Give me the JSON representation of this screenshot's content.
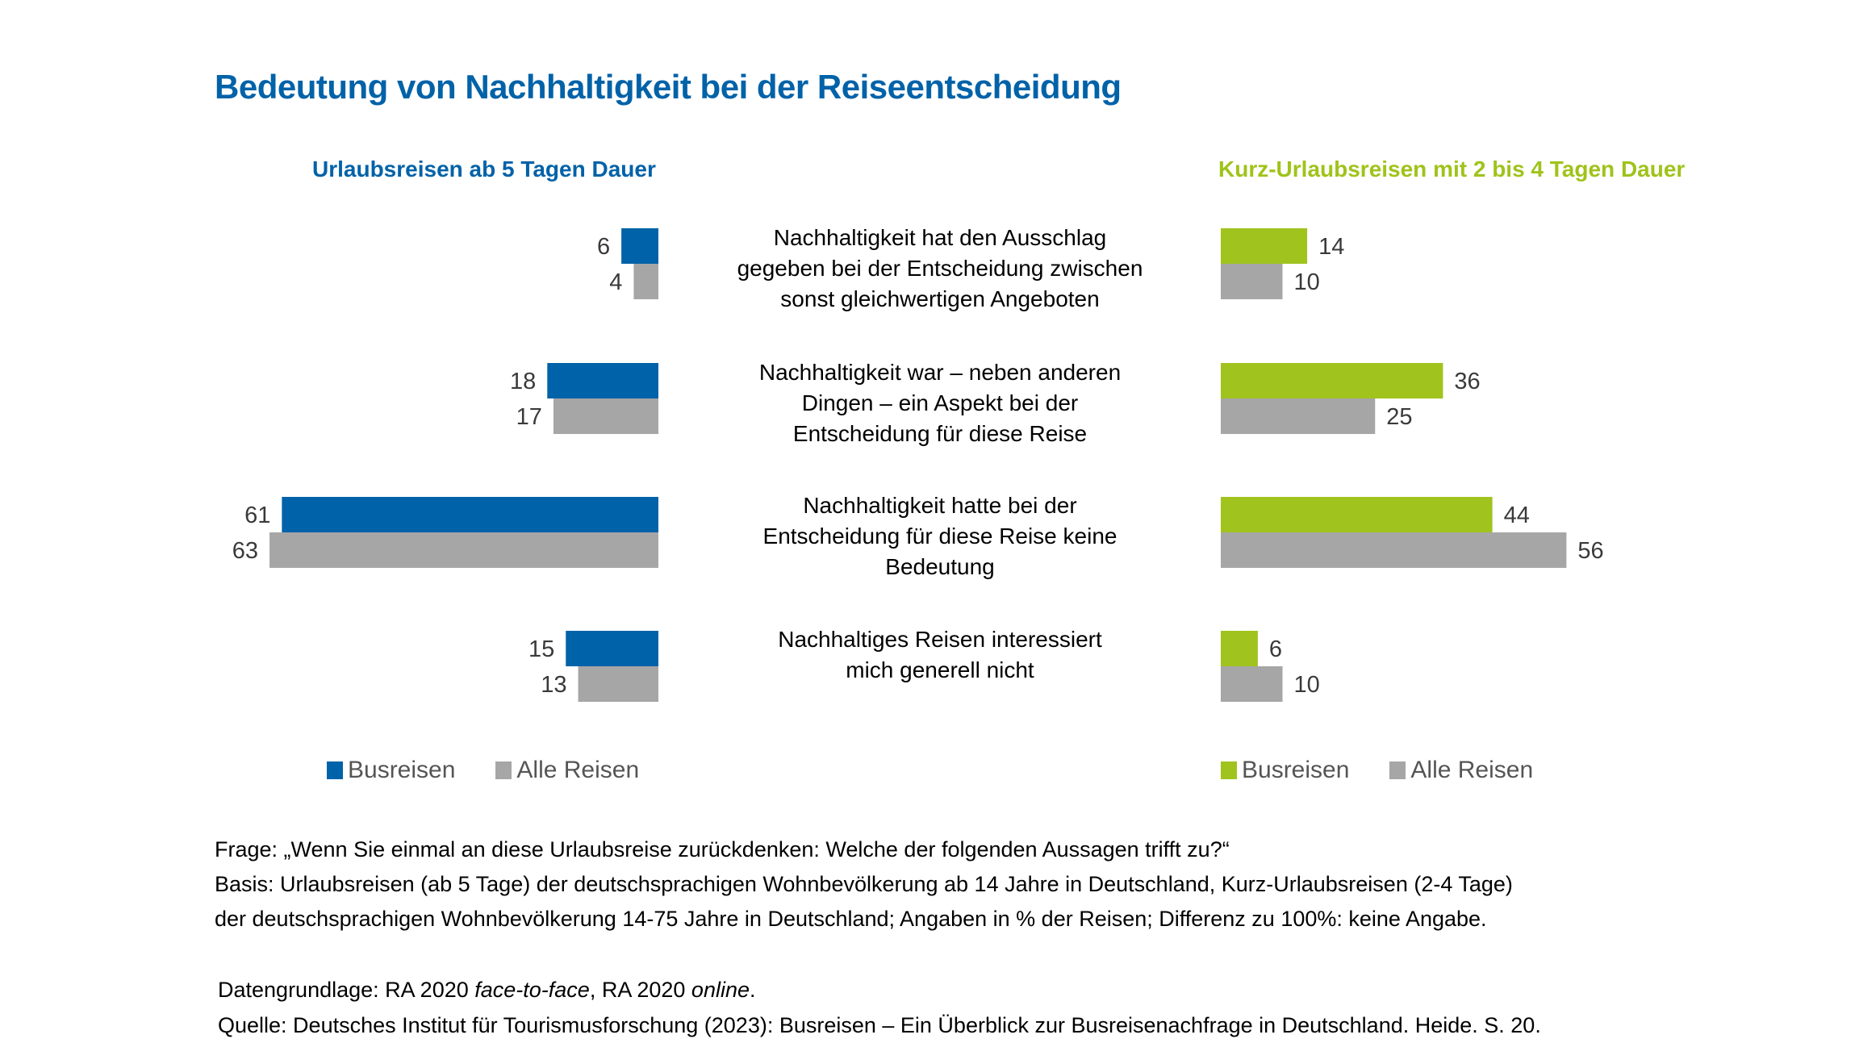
{
  "title": "Bedeutung von Nachhaltigkeit bei der Reiseentscheidung",
  "colors": {
    "title_blue": "#0062a8",
    "bus_left": "#0062a8",
    "bus_right": "#a0c31e",
    "alle": "#a6a6a6",
    "subhead_right": "#9fc31a"
  },
  "chart_data": [
    {
      "type": "bar",
      "orientation": "horizontal",
      "direction": "right-to-left",
      "title": "Urlaubsreisen ab 5 Tagen Dauer",
      "unit": "% der Reisen",
      "categories": [
        "Nachhaltigkeit hat den Ausschlag gegeben bei der Entscheidung zwischen sonst gleichwertigen Angeboten",
        "Nachhaltigkeit war – neben anderen Dingen – ein Aspekt bei der Entscheidung für diese Reise",
        "Nachhaltigkeit hatte bei der Entscheidung für diese Reise keine Bedeutung",
        "Nachhaltiges Reisen interessiert mich generell nicht"
      ],
      "series": [
        {
          "name": "Busreisen",
          "color": "#0062a8",
          "values": [
            6,
            18,
            61,
            15
          ]
        },
        {
          "name": "Alle Reisen",
          "color": "#a6a6a6",
          "values": [
            4,
            17,
            63,
            13
          ]
        }
      ],
      "xlim": [
        0,
        63
      ],
      "grid": false,
      "legend": "bottom"
    },
    {
      "type": "bar",
      "orientation": "horizontal",
      "direction": "left-to-right",
      "title": "Kurz-Urlaubsreisen mit 2 bis 4 Tagen Dauer",
      "unit": "% der Reisen",
      "categories": [
        "Nachhaltigkeit hat den Ausschlag gegeben bei der Entscheidung zwischen sonst gleichwertigen Angeboten",
        "Nachhaltigkeit war – neben anderen Dingen – ein Aspekt bei der Entscheidung für diese Reise",
        "Nachhaltigkeit hatte bei der Entscheidung für diese Reise keine Bedeutung",
        "Nachhaltiges Reisen interessiert mich generell nicht"
      ],
      "series": [
        {
          "name": "Busreisen",
          "color": "#a0c31e",
          "values": [
            14,
            36,
            44,
            6
          ]
        },
        {
          "name": "Alle Reisen",
          "color": "#a6a6a6",
          "values": [
            10,
            25,
            56,
            10
          ]
        }
      ],
      "xlim": [
        0,
        56
      ],
      "grid": false,
      "legend": "bottom"
    }
  ],
  "center_labels": [
    [
      "Nachhaltigkeit hat den Ausschlag",
      "gegeben bei der Entscheidung zwischen",
      "sonst gleichwertigen Angeboten"
    ],
    [
      "Nachhaltigkeit war – neben anderen",
      "Dingen – ein Aspekt bei der",
      "Entscheidung für diese Reise"
    ],
    [
      "Nachhaltigkeit hatte bei der",
      "Entscheidung für diese Reise keine",
      "Bedeutung"
    ],
    [
      "Nachhaltiges Reisen interessiert",
      "mich generell nicht"
    ]
  ],
  "legend_left": {
    "bus": "Busreisen",
    "alle": "Alle Reisen"
  },
  "legend_right": {
    "bus": "Busreisen",
    "alle": "Alle Reisen"
  },
  "footnotes": {
    "frage": "Frage: „Wenn Sie einmal an diese Urlaubsreise zurückdenken: Welche der folgenden Aussagen trifft zu?“",
    "basis_1": "Basis: Urlaubsreisen (ab 5 Tage) der deutschsprachigen Wohnbevölkerung ab 14 Jahre in Deutschland, Kurz-Urlaubsreisen (2-4 Tage)",
    "basis_2": "der deutschsprachigen Wohnbevölkerung 14-75 Jahre in Deutschland; Angaben in % der Reisen; Differenz zu 100%: keine Angabe.",
    "datengrundlage_prefix": "Datengrundlage: RA 2020 ",
    "datengrundlage_italic_1": "face-to-face",
    "datengrundlage_mid": ", RA 2020 ",
    "datengrundlage_italic_2": "online",
    "datengrundlage_suffix": ".",
    "quelle": "Quelle: Deutsches Institut für Tourismusforschung (2023): Busreisen – Ein Überblick zur Busreisenachfrage in Deutschland. Heide. S. 20."
  }
}
